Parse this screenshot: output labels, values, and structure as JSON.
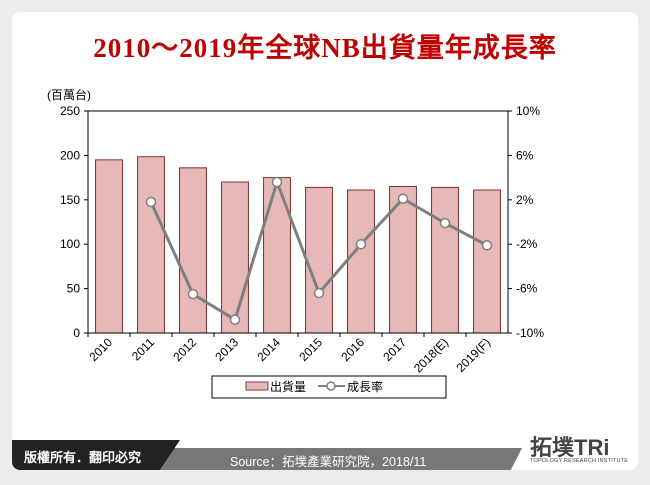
{
  "title": "2010～2019年全球NB出貨量年成長率",
  "footer": {
    "copyright": "版權所有．翻印必究",
    "source": "Source：拓墣產業研究院，2018/11",
    "logo_text": "拓墣TRi",
    "logo_subtext": "TOPOLOGY RESEARCH INSTITUTE"
  },
  "chart_data": {
    "type": "bar+line",
    "categories": [
      "2010",
      "2011",
      "2012",
      "2013",
      "2014",
      "2015",
      "2016",
      "2017",
      "2018(E)",
      "2019(F)"
    ],
    "left_axis": {
      "unit_label": "(百萬台)",
      "range": [
        0,
        250
      ],
      "ticks": [
        "0",
        "50",
        "100",
        "150",
        "200",
        "250"
      ]
    },
    "right_axis": {
      "range": [
        -10,
        10
      ],
      "ticks": [
        "-10%",
        "-6%",
        "-2%",
        "2%",
        "6%",
        "10%"
      ]
    },
    "series": [
      {
        "name": "出貨量",
        "type": "bar",
        "axis": "left",
        "color": "#e6b8b7",
        "values": [
          195,
          198.5,
          186,
          170,
          175,
          164,
          161,
          165,
          164,
          161
        ]
      },
      {
        "name": "成長率",
        "type": "line",
        "axis": "right",
        "color": "#7f7f7f",
        "values": [
          null,
          1.8,
          -6.5,
          -8.8,
          3.6,
          -6.4,
          -2.0,
          2.1,
          -0.1,
          -2.1
        ]
      }
    ],
    "legend": "bottom",
    "grid": false
  }
}
